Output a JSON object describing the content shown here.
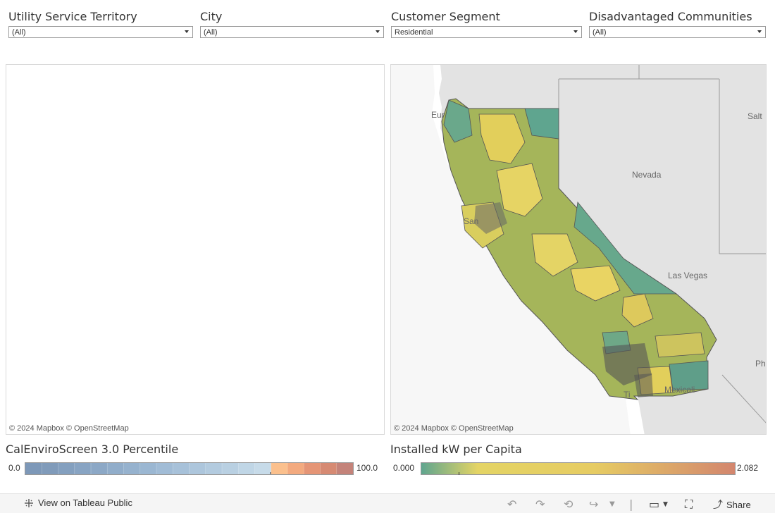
{
  "filters": [
    {
      "title": "Utility Service Territory",
      "value": "(All)"
    },
    {
      "title": "City",
      "value": "(All)"
    },
    {
      "title": "Customer Segment",
      "value": "Residential"
    },
    {
      "title": "Disadvantaged Communities",
      "value": "(All)"
    }
  ],
  "left_map": {
    "attribution": "© 2024 Mapbox  © OpenStreetMap"
  },
  "right_map": {
    "attribution": "© 2024 Mapbox  © OpenStreetMap",
    "place_labels": [
      "Eur",
      "Nevada",
      "Salt",
      "San",
      "Las Vegas",
      "Ph",
      "Ti",
      "Mexicali"
    ]
  },
  "legend_left": {
    "title": "CalEnviroScreen 3.0 Percentile",
    "min": "0.0",
    "max": "100.0",
    "colors": [
      "#7d98b8",
      "#fbc08d",
      "#c4837a"
    ]
  },
  "legend_right": {
    "title": "Installed kW per Capita",
    "min": "0.000",
    "max": "2.082",
    "colors": [
      "#5fa58f",
      "#e4d465",
      "#d3866e"
    ]
  },
  "footer": {
    "view_link": "View on Tableau Public",
    "share_label": "Share",
    "icons": [
      "undo-icon",
      "redo-icon",
      "revert-icon",
      "forward-icon",
      "download-icon",
      "fullscreen-icon",
      "share-icon"
    ]
  }
}
